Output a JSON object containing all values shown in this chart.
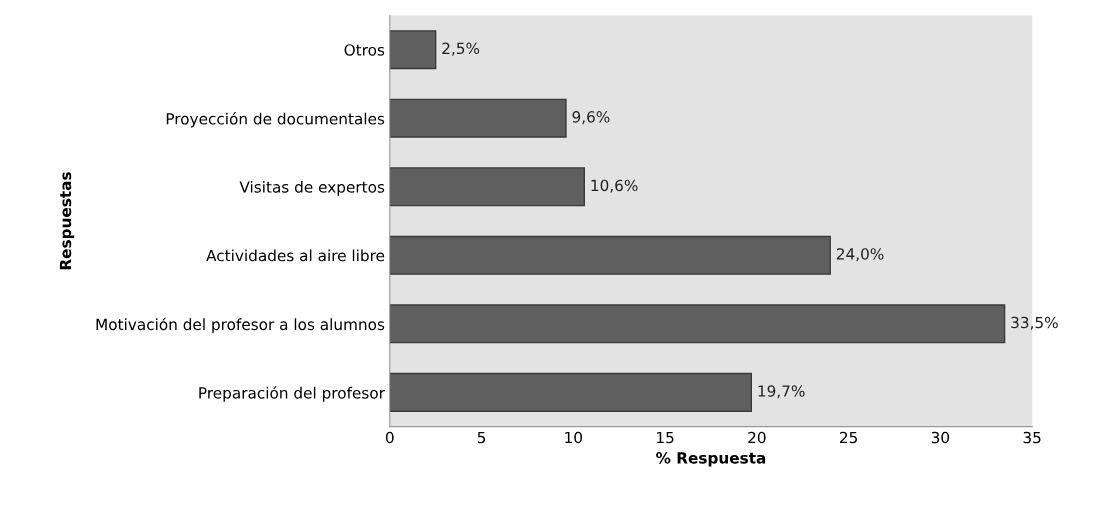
{
  "chart_data": {
    "type": "bar",
    "orientation": "horizontal",
    "xlabel": "% Respuesta",
    "ylabel": "Respuestas",
    "categories": [
      "Otros",
      "Proyección de documentales",
      "Visitas de expertos",
      "Actividades al aire libre",
      "Motivación del profesor a los alumnos",
      "Preparación del profesor"
    ],
    "values": [
      2.5,
      9.6,
      10.6,
      24.0,
      33.5,
      19.7
    ],
    "value_labels": [
      "2,5%",
      "9,6%",
      "10,6%",
      "24,0%",
      "33,5%",
      "19,7%"
    ],
    "color": "#5f5f5f",
    "xlim": [
      0,
      35
    ],
    "xticks": [
      0,
      5,
      10,
      15,
      20,
      25,
      30,
      35
    ],
    "grid": false
  }
}
